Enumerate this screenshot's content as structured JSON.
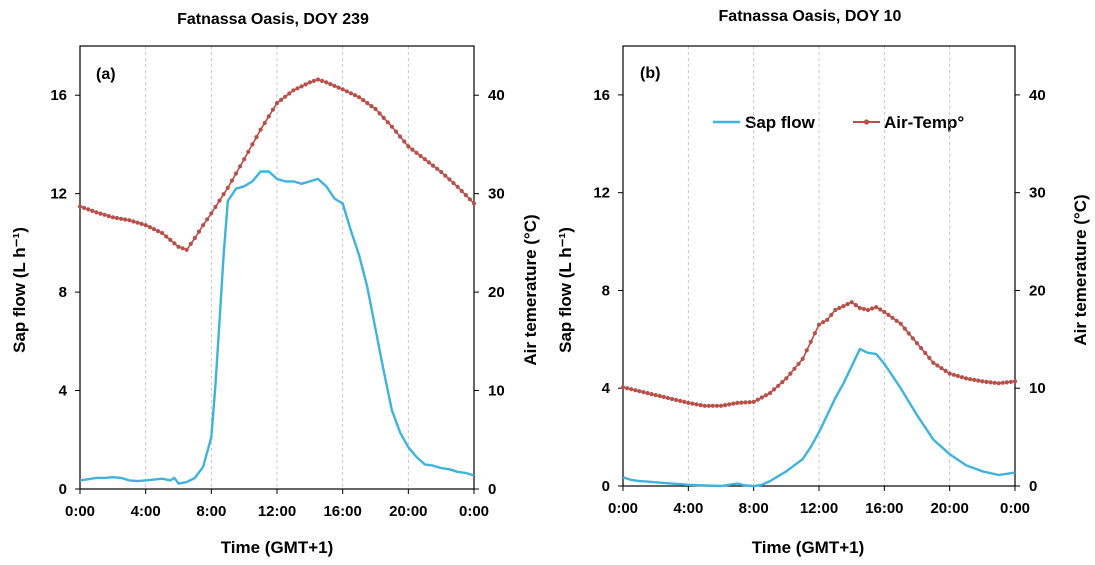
{
  "chart_data": [
    {
      "type": "line",
      "title": "Fatnassa Oasis, DOY 239",
      "panel_label": "(a)",
      "xlabel": "Time (GMT+1)",
      "ylabel_left": "Sap flow (L h⁻¹)",
      "ylabel_right": "Air temerature (°C)",
      "x_ticks": [
        "0:00",
        "4:00",
        "8:00",
        "12:00",
        "16:00",
        "20:00",
        "0:00"
      ],
      "y_left_ticks": [
        "0",
        "4",
        "8",
        "12",
        "16"
      ],
      "y_right_ticks": [
        "0",
        "10",
        "20",
        "30",
        "40"
      ],
      "ylim_left": [
        0,
        18
      ],
      "ylim_right": [
        0,
        45
      ],
      "xlim_hours": [
        0,
        24
      ],
      "grid": "vertical dashed",
      "legend": false,
      "colors": {
        "sap_flow": "#3fb3dc",
        "air_temp": "#b8504a"
      },
      "series": [
        {
          "name": "Sap flow",
          "axis": "left",
          "x_hours": [
            0,
            0.5,
            1,
            1.5,
            2,
            2.5,
            3,
            3.5,
            4,
            4.5,
            5,
            5.5,
            5.75,
            6,
            6.5,
            7,
            7.5,
            8,
            8.25,
            8.5,
            8.75,
            9,
            9.5,
            10,
            10.5,
            11,
            11.5,
            12,
            12.5,
            13,
            13.5,
            14,
            14.5,
            15,
            15.5,
            16,
            16.5,
            17,
            17.5,
            18,
            18.5,
            19,
            19.5,
            20,
            20.5,
            21,
            21.5,
            22,
            22.5,
            23,
            23.5,
            24
          ],
          "values": [
            0.35,
            0.4,
            0.45,
            0.45,
            0.48,
            0.45,
            0.35,
            0.32,
            0.35,
            0.38,
            0.42,
            0.35,
            0.45,
            0.22,
            0.28,
            0.45,
            0.9,
            2.1,
            4.2,
            6.8,
            9.5,
            11.7,
            12.2,
            12.3,
            12.5,
            12.9,
            12.9,
            12.6,
            12.5,
            12.5,
            12.4,
            12.5,
            12.6,
            12.3,
            11.8,
            11.6,
            10.5,
            9.5,
            8.2,
            6.5,
            4.8,
            3.2,
            2.3,
            1.7,
            1.3,
            1.0,
            0.95,
            0.85,
            0.8,
            0.7,
            0.65,
            0.55
          ]
        },
        {
          "name": "Air-Temp°",
          "axis": "right",
          "x_hours": [
            0,
            1,
            2,
            3,
            4,
            5,
            6,
            6.5,
            7,
            7.5,
            8,
            9,
            10,
            11,
            12,
            13,
            14,
            14.5,
            15,
            16,
            17,
            18,
            19,
            20,
            21,
            22,
            23,
            24
          ],
          "values": [
            28.7,
            28.1,
            27.6,
            27.3,
            26.8,
            26.0,
            24.6,
            24.3,
            25.5,
            26.8,
            28.0,
            30.6,
            33.5,
            36.5,
            39.2,
            40.5,
            41.3,
            41.6,
            41.3,
            40.6,
            39.8,
            38.6,
            36.8,
            34.8,
            33.5,
            32.2,
            30.7,
            29.0
          ]
        }
      ]
    },
    {
      "type": "line",
      "title": "Fatnassa Oasis, DOY 10",
      "panel_label": "(b)",
      "xlabel": "Time (GMT+1)",
      "ylabel_left": "Sap flow (L h⁻¹)",
      "ylabel_right": "Air temerature (°C)",
      "x_ticks": [
        "0:00",
        "4:00",
        "8:00",
        "12:00",
        "16:00",
        "20:00",
        "0:00"
      ],
      "y_left_ticks": [
        "0",
        "4",
        "8",
        "12",
        "16"
      ],
      "y_right_ticks": [
        "0",
        "10",
        "20",
        "30",
        "40"
      ],
      "ylim_left": [
        0,
        18
      ],
      "ylim_right": [
        0,
        45
      ],
      "xlim_hours": [
        0,
        24
      ],
      "grid": "vertical dashed",
      "legend": "top-right",
      "legend_labels": [
        "Sap flow",
        "Air-Temp°"
      ],
      "colors": {
        "sap_flow": "#3fb3dc",
        "air_temp": "#b8504a"
      },
      "series": [
        {
          "name": "Sap flow",
          "axis": "left",
          "x_hours": [
            0,
            0.5,
            1,
            1.5,
            2,
            3,
            4,
            5,
            6,
            6.5,
            7,
            7.5,
            8,
            8.5,
            9,
            10,
            11,
            11.5,
            12,
            12.5,
            13,
            13.5,
            14,
            14.5,
            15,
            15.5,
            16,
            17,
            18,
            19,
            20,
            21,
            22,
            23,
            24
          ],
          "values": [
            0.35,
            0.25,
            0.2,
            0.18,
            0.15,
            0.1,
            0.05,
            0.02,
            0.0,
            0.05,
            0.1,
            0.02,
            0.0,
            0.05,
            0.2,
            0.6,
            1.1,
            1.6,
            2.2,
            2.9,
            3.6,
            4.2,
            4.9,
            5.6,
            5.45,
            5.4,
            5.0,
            4.0,
            2.9,
            1.9,
            1.3,
            0.85,
            0.6,
            0.45,
            0.55
          ]
        },
        {
          "name": "Air-Temp°",
          "axis": "right",
          "x_hours": [
            0,
            1,
            2,
            3,
            4,
            5,
            6,
            7,
            8,
            9,
            10,
            11,
            12,
            12.5,
            13,
            13.5,
            14,
            14.5,
            15,
            15.5,
            16,
            17,
            18,
            19,
            20,
            21,
            22,
            23,
            24
          ],
          "values": [
            10.1,
            9.7,
            9.3,
            8.9,
            8.5,
            8.2,
            8.2,
            8.5,
            8.6,
            9.5,
            11.0,
            13.0,
            16.5,
            17.0,
            18.0,
            18.4,
            18.8,
            18.2,
            18.0,
            18.3,
            17.8,
            16.6,
            14.6,
            12.6,
            11.5,
            11.0,
            10.7,
            10.5,
            10.7
          ]
        }
      ]
    }
  ]
}
